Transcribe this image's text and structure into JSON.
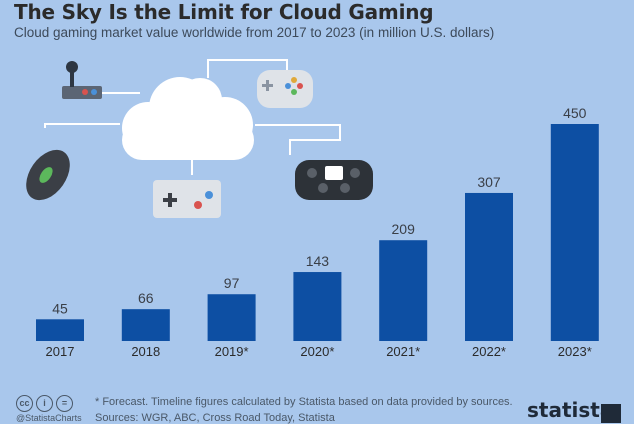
{
  "header": {
    "title": "The Sky Is the Limit for Cloud Gaming",
    "subtitle": "Cloud gaming market value worldwide from 2017 to 2023 (in million U.S. dollars)"
  },
  "chart_data": {
    "type": "bar",
    "title": "The Sky Is the Limit for Cloud Gaming",
    "subtitle": "Cloud gaming market value worldwide from 2017 to 2023 (in million U.S. dollars)",
    "categories": [
      "2017",
      "2018",
      "2019*",
      "2020*",
      "2021*",
      "2022*",
      "2023*"
    ],
    "values": [
      45,
      66,
      97,
      143,
      209,
      307,
      450
    ],
    "ylim": [
      0,
      450
    ],
    "grid": false,
    "bar_color": "#0d4fa3"
  },
  "footer": {
    "note": "* Forecast. Timeline figures calculated by Statista based on data provided by sources.",
    "sources": "Sources: WGR, ABC, Cross Road Today, Statista",
    "handle": "@StatistaCharts",
    "brand": "statista",
    "cc_icons": [
      "cc",
      "i",
      "="
    ]
  },
  "colors": {
    "background": "#a9c7ec",
    "bar": "#0d4fa3",
    "title": "#2b2b2b",
    "cloud": "#ffffff"
  },
  "icons": [
    "joystick-icon",
    "gamepad-icon",
    "mouse-icon",
    "retro-controller-icon",
    "console-controller-icon",
    "cloud-icon"
  ]
}
